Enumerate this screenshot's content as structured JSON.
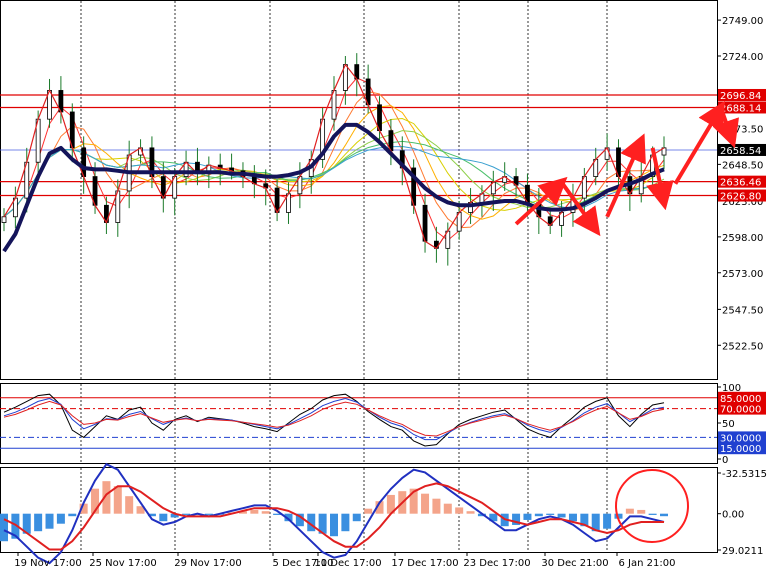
{
  "chart_data": [
    {
      "type": "line",
      "panel": "price",
      "y_ticks": [
        2749.0,
        2724.0,
        2698.0,
        2673.5,
        2648.5,
        2623.0,
        2598.0,
        2573.0,
        2547.5,
        2522.5
      ],
      "y_tick_labels": [
        "2749.00",
        "2724.00",
        "2698.00",
        "2673.50",
        "2648.50",
        "2623.00",
        "2598.00",
        "2573.00",
        "2547.50",
        "2522.50"
      ],
      "ylim": [
        2499.0,
        2763.0
      ],
      "horizontal_levels": [
        {
          "label": "2696.84",
          "value": 2696.84,
          "color": "#e00000"
        },
        {
          "label": "2688.14",
          "value": 2688.14,
          "color": "#e00000"
        },
        {
          "label": "2658.54",
          "value": 2658.54,
          "color": "#000000"
        },
        {
          "label": "2636.46",
          "value": 2636.46,
          "color": "#e00000"
        },
        {
          "label": "2626.80",
          "value": 2626.8,
          "color": "#e00000"
        }
      ],
      "series": [
        {
          "values": [
            2612,
            2625,
            2650,
            2680,
            2700,
            2685,
            2660,
            2640,
            2620,
            2608,
            2630,
            2655,
            2660,
            2640,
            2625,
            2640,
            2650,
            2642,
            2648,
            2646,
            2644,
            2640,
            2635,
            2632,
            2615,
            2628,
            2640,
            2652,
            2680,
            2700,
            2718,
            2708,
            2690,
            2672,
            2658,
            2646,
            2620,
            2595,
            2590,
            2602,
            2615,
            2622,
            2628,
            2636,
            2640,
            2634,
            2622,
            2612,
            2606,
            2615,
            2625,
            2640,
            2652,
            2660,
            2640,
            2628,
            2640,
            2655,
            2660
          ]
        },
        {
          "values": [
            2588,
            2600,
            2620,
            2640,
            2656,
            2660,
            2652,
            2646,
            2645,
            2645,
            2644,
            2643,
            2643,
            2643,
            2643,
            2643,
            2643,
            2643,
            2643,
            2643,
            2642,
            2642,
            2641,
            2640,
            2640,
            2641,
            2643,
            2647,
            2656,
            2668,
            2676,
            2676,
            2671,
            2664,
            2656,
            2648,
            2640,
            2632,
            2626,
            2622,
            2620,
            2620,
            2621,
            2622,
            2623,
            2623,
            2621,
            2618,
            2617,
            2617,
            2618,
            2621,
            2625,
            2630,
            2633,
            2635,
            2638,
            2642,
            2645
          ]
        }
      ],
      "annotations": [
        {
          "type": "arrow",
          "color": "#ff2020",
          "from": [
            45,
            2607
          ],
          "to": [
            49,
            2636
          ]
        },
        {
          "type": "arrow",
          "color": "#ff2020",
          "from": [
            49,
            2636
          ],
          "to": [
            52,
            2603
          ]
        },
        {
          "type": "arrow",
          "color": "#ff2020",
          "from": [
            53,
            2612
          ],
          "to": [
            56,
            2665
          ]
        },
        {
          "type": "arrow",
          "color": "#ff2020",
          "from": [
            57,
            2660
          ],
          "to": [
            58,
            2622
          ]
        },
        {
          "type": "arrow",
          "color": "#ff2020",
          "from": [
            59,
            2635
          ],
          "to": [
            63,
            2688
          ]
        },
        {
          "type": "arrow",
          "color": "#ff2020",
          "from": [
            63,
            2688
          ],
          "to": [
            64,
            2665
          ]
        }
      ]
    },
    {
      "type": "line",
      "panel": "oscillator",
      "ylim": [
        0,
        100
      ],
      "y_tick_labels": [
        "100",
        "50",
        "0"
      ],
      "levels": [
        {
          "label": "85.0000",
          "value": 85
        },
        {
          "label": "70.0000",
          "value": 70
        },
        {
          "label": "30.0000",
          "value": 30
        },
        {
          "label": "15.0000",
          "value": 15
        }
      ],
      "series": [
        {
          "values": [
            65,
            72,
            80,
            88,
            90,
            75,
            40,
            30,
            45,
            60,
            55,
            68,
            72,
            50,
            40,
            55,
            60,
            52,
            58,
            56,
            54,
            50,
            45,
            42,
            38,
            50,
            62,
            70,
            82,
            88,
            90,
            80,
            66,
            55,
            45,
            40,
            25,
            18,
            20,
            35,
            48,
            55,
            60,
            65,
            68,
            55,
            42,
            35,
            30,
            45,
            58,
            72,
            80,
            85,
            60,
            45,
            62,
            75,
            78
          ]
        },
        {
          "values": [
            60,
            65,
            72,
            80,
            84,
            76,
            55,
            42,
            48,
            56,
            55,
            62,
            66,
            56,
            48,
            54,
            57,
            53,
            56,
            55,
            54,
            51,
            48,
            45,
            42,
            48,
            56,
            64,
            74,
            80,
            84,
            79,
            68,
            58,
            50,
            45,
            34,
            27,
            27,
            36,
            45,
            51,
            56,
            60,
            63,
            56,
            47,
            41,
            37,
            44,
            53,
            64,
            72,
            77,
            64,
            52,
            60,
            69,
            72
          ]
        },
        {
          "values": [
            58,
            62,
            68,
            75,
            80,
            75,
            60,
            48,
            50,
            55,
            54,
            59,
            63,
            57,
            51,
            54,
            56,
            53,
            55,
            54,
            53,
            51,
            49,
            47,
            44,
            47,
            53,
            60,
            69,
            75,
            79,
            76,
            68,
            60,
            53,
            48,
            39,
            33,
            32,
            38,
            45,
            50,
            54,
            58,
            61,
            56,
            49,
            44,
            40,
            45,
            52,
            61,
            68,
            73,
            64,
            55,
            59,
            66,
            69
          ]
        }
      ]
    },
    {
      "type": "bar",
      "panel": "macd",
      "ylim": [
        -32.5315,
        29.0211
      ],
      "y_tick_labels": [
        "29.0211",
        "0.00",
        "-32.5315"
      ],
      "x_tick_labels": [
        "19 Nov 17:00",
        "25 Nov 17:00",
        "29 Nov 17:00",
        "5 Dec 17:00",
        "11 Dec 17:00",
        "17 Dec 17:00",
        "23 Dec 17:00",
        "30 Dec 21:00",
        "6 Jan 21:00"
      ],
      "histogram": [
        22,
        20,
        16,
        14,
        12,
        8,
        2,
        -8,
        -20,
        -26,
        -22,
        -14,
        -6,
        2,
        6,
        3,
        1,
        0,
        1,
        0,
        -1,
        -2,
        -3,
        -2,
        1,
        6,
        10,
        14,
        16,
        18,
        14,
        6,
        -4,
        -10,
        -15,
        -18,
        -20,
        -16,
        -12,
        -8,
        -5,
        -2,
        2,
        6,
        10,
        9,
        5,
        2,
        1,
        3,
        6,
        10,
        14,
        12,
        4,
        -4,
        -3,
        1,
        2
      ],
      "series": [
        {
          "values": [
            6,
            8,
            12,
            16,
            18,
            14,
            6,
            -4,
            -12,
            -18,
            -16,
            -10,
            -4,
            2,
            4,
            3,
            1,
            0,
            1,
            0,
            -1,
            -2,
            -3,
            -3,
            -1,
            2,
            6,
            10,
            14,
            16,
            15,
            10,
            3,
            -4,
            -9,
            -13,
            -16,
            -15,
            -12,
            -9,
            -6,
            -3,
            0,
            3,
            6,
            6,
            4,
            2,
            1,
            2,
            4,
            7,
            10,
            9,
            5,
            1,
            1,
            2,
            3
          ]
        },
        {
          "values": [
            2,
            4,
            7,
            10,
            13,
            13,
            10,
            5,
            -1,
            -7,
            -10,
            -10,
            -8,
            -5,
            -2,
            0,
            1,
            1,
            1,
            1,
            0,
            -1,
            -2,
            -2,
            -2,
            -1,
            1,
            4,
            7,
            10,
            12,
            12,
            9,
            5,
            0,
            -4,
            -8,
            -10,
            -11,
            -10,
            -8,
            -6,
            -4,
            -1,
            2,
            3,
            4,
            3,
            2,
            2,
            3,
            4,
            6,
            7,
            6,
            4,
            3,
            3,
            3
          ]
        }
      ]
    }
  ]
}
